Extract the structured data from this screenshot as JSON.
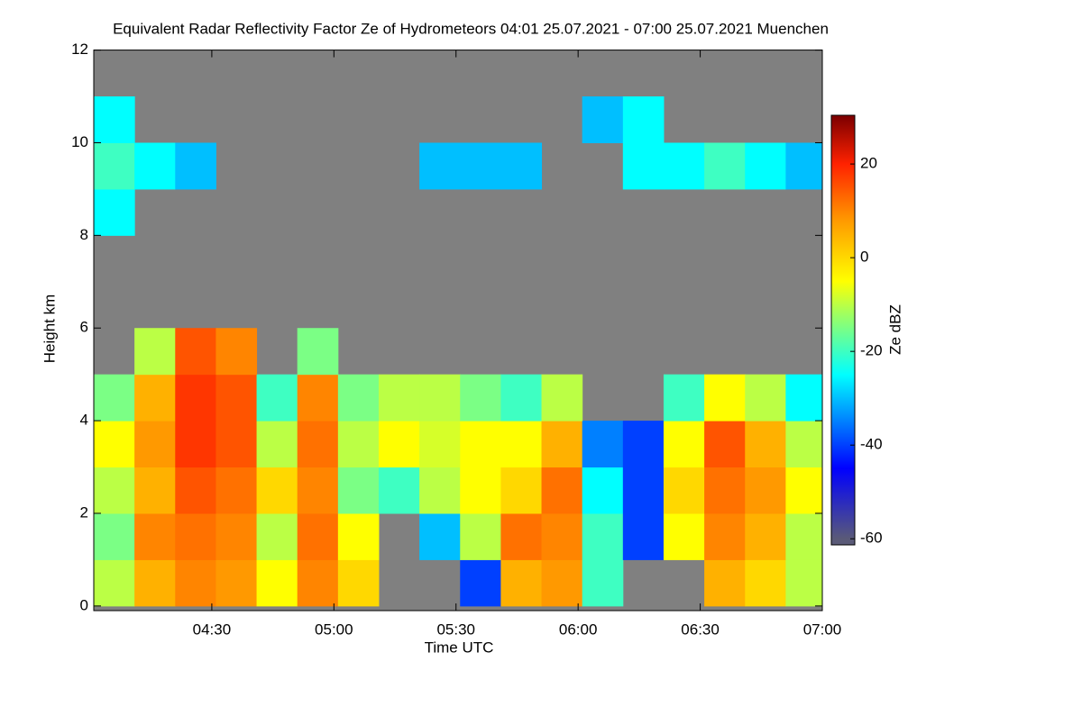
{
  "chart_data": {
    "type": "heatmap",
    "title": "Equivalent Radar Reflectivity Factor Ze of Hydrometeors   04:01 25.07.2021 - 07:00 25.07.2021 Muenchen",
    "x_label": "Time UTC",
    "y_label": "Height km",
    "colorbar_label": "Ze dBZ",
    "background": "#808080",
    "x": [
      246,
      256,
      266,
      276,
      286,
      296,
      306,
      316,
      326,
      336,
      346,
      356,
      366,
      376,
      386,
      396,
      406,
      416
    ],
    "y": [
      0.5,
      1.5,
      2.5,
      3.5,
      4.5,
      5.5,
      6.5,
      7.5,
      8.5,
      9.5,
      10.5,
      11.5
    ],
    "z": [
      [
        -10,
        5,
        10,
        8,
        -5,
        10,
        0,
        null,
        null,
        -40,
        5,
        8,
        -20,
        null,
        null,
        5,
        0,
        -10
      ],
      [
        -15,
        10,
        12,
        10,
        -10,
        12,
        -5,
        null,
        -30,
        -10,
        12,
        10,
        -20,
        -40,
        -5,
        10,
        5,
        -10
      ],
      [
        -10,
        5,
        15,
        12,
        0,
        10,
        -15,
        -20,
        -10,
        -5,
        0,
        12,
        -25,
        -40,
        0,
        12,
        8,
        -5
      ],
      [
        -5,
        8,
        18,
        15,
        -10,
        12,
        -10,
        -5,
        -8,
        -5,
        -5,
        5,
        -35,
        -40,
        -5,
        15,
        5,
        -10
      ],
      [
        -15,
        5,
        18,
        15,
        -20,
        10,
        -15,
        -10,
        -10,
        -15,
        -20,
        -10,
        null,
        null,
        -20,
        -5,
        -10,
        -25
      ],
      [
        null,
        -10,
        15,
        10,
        null,
        -15,
        null,
        null,
        null,
        null,
        null,
        null,
        null,
        null,
        null,
        null,
        null,
        null
      ],
      [
        null,
        null,
        null,
        null,
        null,
        null,
        null,
        null,
        null,
        null,
        null,
        null,
        null,
        null,
        null,
        null,
        null,
        null
      ],
      [
        null,
        null,
        null,
        null,
        null,
        null,
        null,
        null,
        null,
        null,
        null,
        null,
        null,
        null,
        null,
        null,
        null,
        null
      ],
      [
        -25,
        null,
        null,
        null,
        null,
        null,
        null,
        null,
        null,
        null,
        null,
        null,
        null,
        null,
        null,
        null,
        null,
        null
      ],
      [
        -20,
        -25,
        -30,
        null,
        null,
        null,
        null,
        null,
        -30,
        -30,
        -30,
        null,
        null,
        -25,
        -25,
        -20,
        -25,
        -30
      ],
      [
        -25,
        null,
        null,
        null,
        null,
        null,
        null,
        null,
        null,
        null,
        null,
        null,
        -30,
        -25,
        null,
        null,
        null,
        null
      ],
      [
        null,
        null,
        null,
        null,
        null,
        null,
        null,
        null,
        null,
        null,
        null,
        null,
        null,
        null,
        null,
        null,
        null,
        null
      ]
    ],
    "colorscale": [
      [
        -60,
        "#5a5a78"
      ],
      [
        -45,
        "#0000ff"
      ],
      [
        -25,
        "#00ffff"
      ],
      [
        -12,
        "#a0ff60"
      ],
      [
        -5,
        "#ffff00"
      ],
      [
        8,
        "#ff9900"
      ],
      [
        20,
        "#ff2200"
      ],
      [
        30,
        "#800000"
      ]
    ],
    "xlim": [
      241,
      420
    ],
    "ylim": [
      -0.1,
      12
    ],
    "zlim": [
      -61.3,
      30.4
    ],
    "xticks": [
      {
        "value": 270,
        "label": "04:30"
      },
      {
        "value": 300,
        "label": "05:00"
      },
      {
        "value": 330,
        "label": "05:30"
      },
      {
        "value": 360,
        "label": "06:00"
      },
      {
        "value": 390,
        "label": "06:30"
      },
      {
        "value": 420,
        "label": "07:00"
      }
    ],
    "yticks": [
      0,
      2,
      4,
      6,
      8,
      10,
      12
    ],
    "zticks": [
      -60,
      -40,
      -20,
      0,
      20
    ]
  }
}
